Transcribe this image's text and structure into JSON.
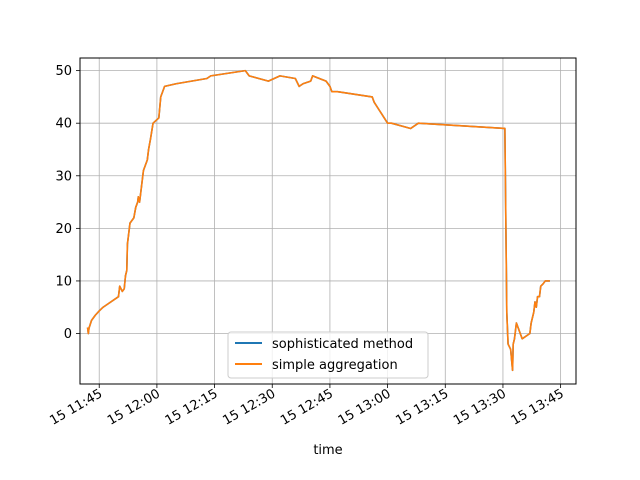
{
  "chart_data": {
    "type": "line",
    "title": "",
    "xlabel": "time",
    "ylabel": "",
    "x_tick_labels": [
      "15 11:45",
      "15 12:00",
      "15 12:15",
      "15 12:30",
      "15 12:45",
      "15 13:00",
      "15 13:15",
      "15 13:30",
      "15 13:45"
    ],
    "y_tick_labels": [
      "0",
      "10",
      "20",
      "30",
      "40",
      "50"
    ],
    "x_ticks": [
      "2024-01-15 11:45",
      "2024-01-15 12:00",
      "2024-01-15 12:15",
      "2024-01-15 12:30",
      "2024-01-15 12:45",
      "2024-01-15 13:00",
      "2024-01-15 13:15",
      "2024-01-15 13:30",
      "2024-01-15 13:45"
    ],
    "y_ticks": [
      0,
      10,
      20,
      30,
      40,
      50
    ],
    "xlim": [
      "2024-01-15 11:40",
      "2024-01-15 13:49"
    ],
    "ylim": [
      -9.6,
      52.4
    ],
    "grid": true,
    "legend_position": "bottom-center",
    "colors": {
      "sophisticated": "#1f77b4",
      "simple": "#ff7f0e"
    },
    "x": [
      "11:42:00",
      "11:42:10",
      "11:42:20",
      "11:43:00",
      "11:44:00",
      "11:45:00",
      "11:46:00",
      "11:47:00",
      "11:50:00",
      "11:50:20",
      "11:51:00",
      "11:51:30",
      "11:51:50",
      "11:52:10",
      "11:52:20",
      "11:53:00",
      "11:53:30",
      "11:54:00",
      "11:54:30",
      "11:55:00",
      "11:55:10",
      "11:55:30",
      "11:55:50",
      "11:56:00",
      "11:56:30",
      "11:57:00",
      "11:57:30",
      "11:57:50",
      "11:58:20",
      "11:59:00",
      "12:00:30",
      "12:01:00",
      "12:01:30",
      "12:02:00",
      "12:05:00",
      "12:09:00",
      "12:13:00",
      "12:14:00",
      "12:23:00",
      "12:24:00",
      "12:29:00",
      "12:32:00",
      "12:36:00",
      "12:37:00",
      "12:38:00",
      "12:40:00",
      "12:40:30",
      "12:44:00",
      "12:45:00",
      "12:45:30",
      "12:46:00",
      "12:47:00",
      "12:56:00",
      "12:56:30",
      "13:00:00",
      "13:01:00",
      "13:06:00",
      "13:08:00",
      "13:30:30",
      "13:31:00",
      "13:31:20",
      "13:32:00",
      "13:32:30",
      "13:32:40",
      "13:33:00",
      "13:33:30",
      "13:34:00",
      "13:35:00",
      "13:37:00",
      "13:37:20",
      "13:38:00",
      "13:38:20",
      "13:38:40",
      "13:39:00",
      "13:39:30",
      "13:39:50",
      "13:40:30",
      "13:41:00",
      "13:41:30",
      "13:42:00"
    ],
    "series": [
      {
        "name": "sophisticated method",
        "values": [
          1,
          0,
          1,
          2.5,
          3.5,
          4.3,
          5,
          5.5,
          7,
          9,
          8,
          8.5,
          11,
          12,
          17,
          21,
          21.5,
          22,
          24,
          25,
          26,
          25,
          27,
          28,
          31,
          32,
          33,
          35,
          37,
          40,
          41,
          45,
          46,
          47,
          47.5,
          48,
          48.5,
          49,
          50,
          49,
          48,
          49,
          48.5,
          47,
          47.5,
          48,
          49,
          48,
          47,
          46,
          46,
          46,
          45,
          44,
          40,
          40,
          39,
          40,
          39,
          4,
          -2,
          -3,
          -7,
          -2,
          -1,
          2,
          1,
          -1,
          0,
          2,
          4,
          6,
          5,
          7,
          7,
          9,
          9.5,
          10,
          10,
          10
        ]
      },
      {
        "name": "simple aggregation",
        "values": [
          1,
          0,
          1,
          2.5,
          3.5,
          4.3,
          5,
          5.5,
          7,
          9,
          8,
          8.5,
          11,
          12,
          17,
          21,
          21.5,
          22,
          24,
          25,
          26,
          25,
          27,
          28,
          31,
          32,
          33,
          35,
          37,
          40,
          41,
          45,
          46,
          47,
          47.5,
          48,
          48.5,
          49,
          50,
          49,
          48,
          49,
          48.5,
          47,
          47.5,
          48,
          49,
          48,
          47,
          46,
          46,
          46,
          45,
          44,
          40,
          40,
          39,
          40,
          39,
          4,
          -2,
          -3,
          -7,
          -2,
          -1,
          2,
          1,
          -1,
          0,
          2,
          4,
          6,
          5,
          7,
          7,
          9,
          9.5,
          10,
          10,
          10
        ]
      }
    ]
  }
}
